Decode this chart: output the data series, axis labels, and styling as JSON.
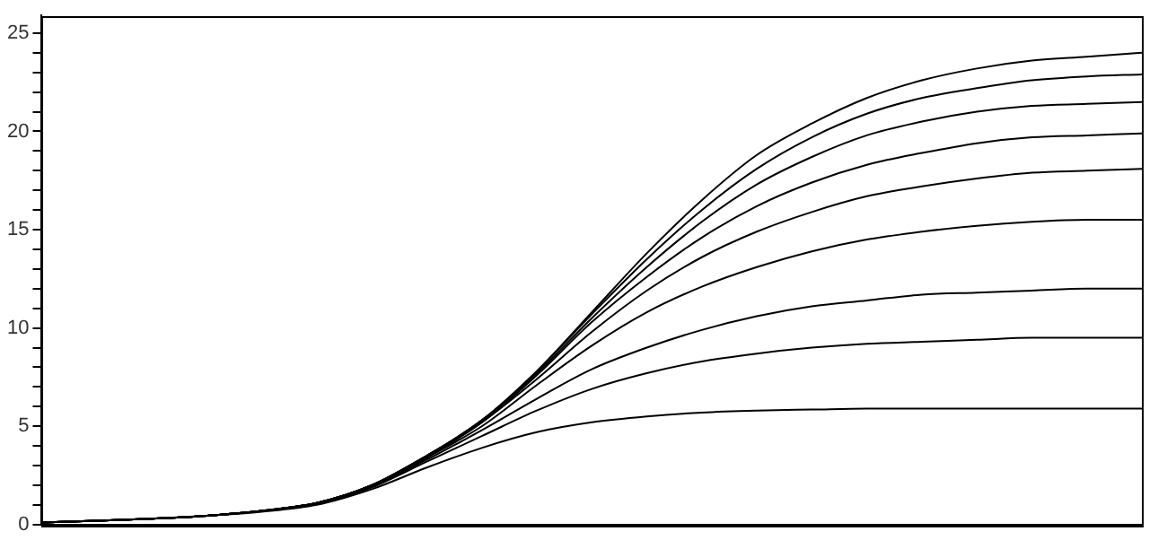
{
  "chart_data": {
    "type": "line",
    "categories": [
      null,
      null,
      null,
      null,
      null,
      null,
      null,
      null,
      null,
      null,
      null,
      null,
      null,
      null,
      null,
      null,
      null,
      null,
      null,
      null,
      null
    ],
    "ylim": [
      0,
      25.9
    ],
    "yticks": [
      0,
      {
        "value": 1,
        "label": null
      },
      {
        "value": 2,
        "label": null
      },
      {
        "value": 3,
        "label": null
      },
      {
        "value": 4,
        "label": null
      },
      5,
      {
        "value": 6,
        "label": null
      },
      {
        "value": 7,
        "label": null
      },
      {
        "value": 8,
        "label": null
      },
      {
        "value": 9,
        "label": null
      },
      10,
      {
        "value": 11,
        "label": null
      },
      {
        "value": 12,
        "label": null
      },
      {
        "value": 13,
        "label": null
      },
      {
        "value": 14,
        "label": null
      },
      15,
      {
        "value": 16,
        "label": null
      },
      {
        "value": 17,
        "label": null
      },
      {
        "value": 18,
        "label": null
      },
      {
        "value": 19,
        "label": null
      },
      20,
      {
        "value": 21,
        "label": null
      },
      {
        "value": 22,
        "label": null
      },
      {
        "value": 23,
        "label": null
      },
      {
        "value": 24,
        "label": null
      },
      25
    ],
    "tick_labels": "y",
    "grid": false,
    "legend": false,
    "marker": "none",
    "line_style": "solid",
    "series": [
      {
        "color": "#000000",
        "values": [
          0.1,
          0.2,
          0.3,
          0.45,
          0.7,
          1.1,
          2.0,
          3.5,
          5.3,
          7.8,
          10.8,
          13.8,
          16.5,
          18.8,
          20.4,
          21.7,
          22.6,
          23.2,
          23.6,
          23.8,
          24.0
        ]
      },
      {
        "color": "#000000",
        "values": [
          0.1,
          0.2,
          0.3,
          0.45,
          0.7,
          1.1,
          2.0,
          3.5,
          5.3,
          7.8,
          10.7,
          13.5,
          16.0,
          18.1,
          19.7,
          20.9,
          21.7,
          22.2,
          22.6,
          22.8,
          22.9
        ]
      },
      {
        "color": "#000000",
        "values": [
          0.1,
          0.2,
          0.3,
          0.45,
          0.7,
          1.1,
          2.0,
          3.5,
          5.3,
          7.7,
          10.5,
          13.1,
          15.4,
          17.3,
          18.7,
          19.8,
          20.5,
          21.0,
          21.3,
          21.4,
          21.5
        ]
      },
      {
        "color": "#000000",
        "values": [
          0.1,
          0.2,
          0.3,
          0.45,
          0.7,
          1.1,
          2.0,
          3.5,
          5.2,
          7.6,
          10.3,
          12.6,
          14.6,
          16.2,
          17.4,
          18.3,
          18.9,
          19.4,
          19.7,
          19.8,
          19.9
        ]
      },
      {
        "color": "#000000",
        "values": [
          0.1,
          0.2,
          0.3,
          0.45,
          0.7,
          1.1,
          2.0,
          3.4,
          5.2,
          7.4,
          9.8,
          11.9,
          13.6,
          14.9,
          15.9,
          16.7,
          17.2,
          17.6,
          17.9,
          18.0,
          18.1
        ]
      },
      {
        "color": "#000000",
        "values": [
          0.1,
          0.2,
          0.3,
          0.45,
          0.7,
          1.1,
          1.9,
          3.4,
          5.0,
          7.1,
          9.1,
          10.8,
          12.1,
          13.1,
          13.9,
          14.5,
          14.9,
          15.2,
          15.4,
          15.5,
          15.5
        ]
      },
      {
        "color": "#000000",
        "values": [
          0.1,
          0.2,
          0.3,
          0.45,
          0.7,
          1.1,
          1.9,
          3.3,
          4.8,
          6.4,
          7.9,
          9.0,
          9.9,
          10.6,
          11.1,
          11.4,
          11.7,
          11.8,
          11.9,
          12.0,
          12.0
        ]
      },
      {
        "color": "#000000",
        "values": [
          0.1,
          0.2,
          0.3,
          0.45,
          0.7,
          1.05,
          1.9,
          3.2,
          4.5,
          5.8,
          6.9,
          7.7,
          8.3,
          8.7,
          9.0,
          9.2,
          9.3,
          9.4,
          9.5,
          9.5,
          9.5
        ]
      },
      {
        "color": "#000000",
        "values": [
          0.1,
          0.2,
          0.3,
          0.45,
          0.65,
          1.0,
          1.8,
          2.9,
          3.9,
          4.7,
          5.2,
          5.5,
          5.7,
          5.8,
          5.85,
          5.9,
          5.9,
          5.9,
          5.9,
          5.9,
          5.9
        ]
      }
    ]
  }
}
